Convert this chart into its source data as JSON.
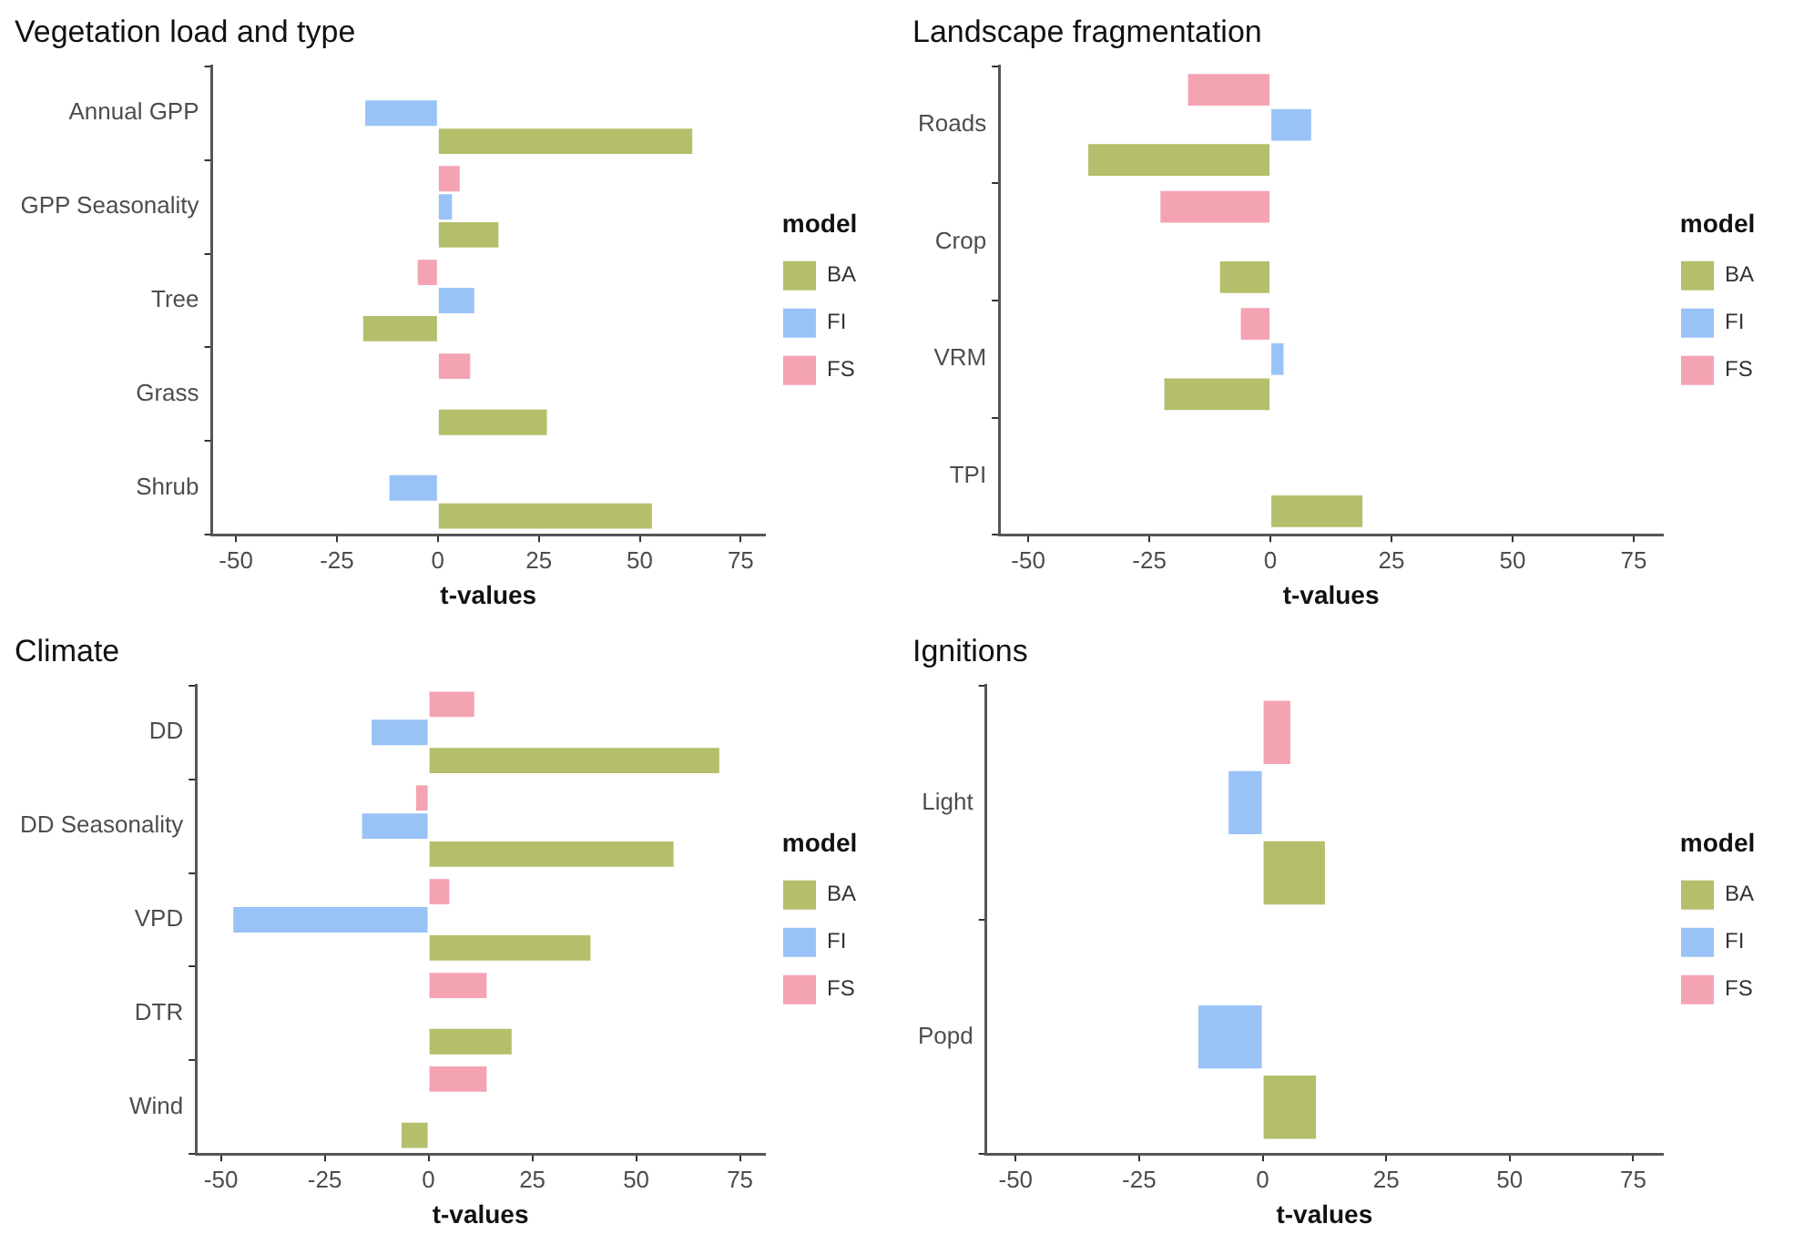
{
  "chart_data": [
    {
      "type": "bar",
      "orientation": "horizontal",
      "title": "Vegetation load and type",
      "xlabel": "t-values",
      "legend_title": "model",
      "legend": "right",
      "grid": false,
      "categories": [
        "Annual GPP",
        "GPP Seasonality",
        "Tree",
        "Grass",
        "Shrub"
      ],
      "xlim": [
        -56,
        81
      ],
      "xticks": [
        -50,
        -25,
        0,
        25,
        50,
        75
      ],
      "series": [
        {
          "name": "BA",
          "color": "#b5be6a",
          "values": [
            63,
            15,
            -18.5,
            27,
            53
          ]
        },
        {
          "name": "FI",
          "color": "#99c3f7",
          "values": [
            -18,
            3.5,
            9,
            null,
            -12
          ]
        },
        {
          "name": "FS",
          "color": "#f4a3b3",
          "values": [
            null,
            5.4,
            -5,
            8,
            null
          ]
        }
      ]
    },
    {
      "type": "bar",
      "orientation": "horizontal",
      "title": "Landscape fragmentation",
      "xlabel": "t-values",
      "legend_title": "model",
      "legend": "right",
      "grid": false,
      "categories": [
        "Roads",
        "Crop",
        "VRM",
        "TPI"
      ],
      "xlim": [
        -56,
        81
      ],
      "xticks": [
        -50,
        -25,
        0,
        25,
        50,
        75
      ],
      "series": [
        {
          "name": "BA",
          "color": "#b5be6a",
          "values": [
            -37.6,
            -10.4,
            -21.9,
            19
          ]
        },
        {
          "name": "FI",
          "color": "#99c3f7",
          "values": [
            8.4,
            null,
            2.7,
            null
          ]
        },
        {
          "name": "FS",
          "color": "#f4a3b3",
          "values": [
            -17,
            -22.7,
            -6.1,
            null
          ]
        }
      ]
    },
    {
      "type": "bar",
      "orientation": "horizontal",
      "title": "Climate",
      "xlabel": "t-values",
      "legend_title": "model",
      "legend": "right",
      "grid": false,
      "categories": [
        "DD",
        "DD Seasonality",
        "VPD",
        "DTR",
        "Wind"
      ],
      "xlim": [
        -56,
        81
      ],
      "xticks": [
        -50,
        -25,
        0,
        25,
        50,
        75
      ],
      "series": [
        {
          "name": "BA",
          "color": "#b5be6a",
          "values": [
            70,
            59,
            39,
            20,
            -6.5
          ]
        },
        {
          "name": "FI",
          "color": "#99c3f7",
          "values": [
            -13.7,
            -16,
            -47,
            null,
            null
          ]
        },
        {
          "name": "FS",
          "color": "#f4a3b3",
          "values": [
            11,
            -3,
            5,
            14,
            14
          ]
        }
      ]
    },
    {
      "type": "bar",
      "orientation": "horizontal",
      "title": "Ignitions",
      "xlabel": "t-values",
      "legend_title": "model",
      "legend": "right",
      "grid": false,
      "categories": [
        "Light",
        "Popd"
      ],
      "xlim": [
        -56,
        81
      ],
      "xticks": [
        -50,
        -25,
        0,
        25,
        50,
        75
      ],
      "series": [
        {
          "name": "BA",
          "color": "#b5be6a",
          "values": [
            12.6,
            10.8
          ]
        },
        {
          "name": "FI",
          "color": "#99c3f7",
          "values": [
            -6.9,
            -13
          ]
        },
        {
          "name": "FS",
          "color": "#f4a3b3",
          "values": [
            5.6,
            null
          ]
        }
      ]
    }
  ]
}
